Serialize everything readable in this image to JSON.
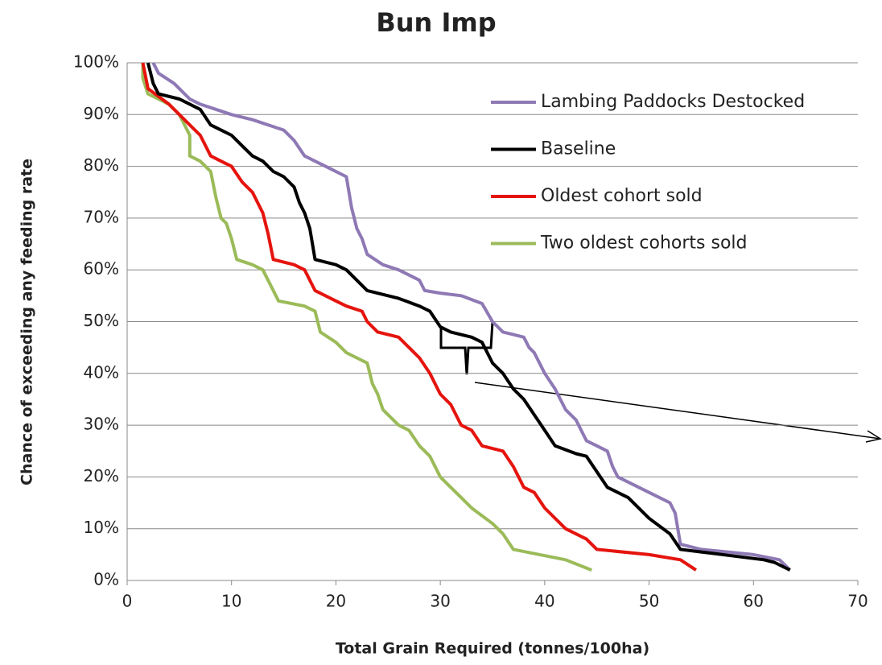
{
  "chart_data": {
    "type": "line",
    "title": "Bun Imp",
    "x_label": "Total Grain Required (tonnes/100ha)",
    "y_label": "Chance of exceeding any feeding rate",
    "xlim": [
      0,
      70
    ],
    "xticks": [
      0,
      10,
      20,
      30,
      40,
      50,
      60,
      70
    ],
    "ylim": [
      0,
      100
    ],
    "yticks": [
      {
        "value": 0,
        "label": "0%"
      },
      {
        "value": 10,
        "label": "10%"
      },
      {
        "value": 20,
        "label": "20%"
      },
      {
        "value": 30,
        "label": "30%"
      },
      {
        "value": 40,
        "label": "40%"
      },
      {
        "value": 50,
        "label": "50%"
      },
      {
        "value": 60,
        "label": "60%"
      },
      {
        "value": 70,
        "label": "70%"
      },
      {
        "value": 80,
        "label": "80%"
      },
      {
        "value": 90,
        "label": "90%"
      },
      {
        "value": 100,
        "label": "100%"
      }
    ],
    "grid": true,
    "legend": "top-right",
    "series": [
      {
        "name": "Lambing Paddocks Destocked",
        "color": "#8e79b5",
        "x": [
          2.5,
          3,
          4.5,
          6,
          7,
          10,
          12,
          15,
          16,
          17,
          18,
          19,
          21,
          21.5,
          22,
          22.5,
          23,
          24.5,
          26,
          27,
          28,
          28.5,
          30,
          32,
          34,
          35,
          36,
          38,
          38.5,
          39,
          40,
          41,
          42,
          43,
          44,
          45,
          46,
          46.5,
          47,
          48,
          50,
          52,
          52.5,
          53,
          55,
          60,
          62.5,
          63.5
        ],
        "values": [
          100,
          98,
          96,
          93,
          92,
          90,
          89,
          87,
          85,
          82,
          81,
          80,
          78,
          72,
          68,
          66,
          63,
          61,
          60,
          59,
          58,
          56,
          55.5,
          55,
          53.5,
          50,
          48,
          47,
          45,
          44,
          40,
          37,
          33,
          31,
          27,
          26,
          25,
          22,
          20,
          19,
          17,
          15,
          13,
          7,
          6,
          5,
          4,
          2
        ]
      },
      {
        "name": "Baseline",
        "color": "#000000",
        "x": [
          2,
          2.5,
          3,
          5,
          6,
          7,
          8,
          9,
          10,
          11,
          12,
          13,
          14,
          15,
          16,
          16.5,
          17,
          17.5,
          18,
          20,
          21,
          22,
          23,
          26,
          28,
          29,
          30,
          31,
          33,
          34,
          35,
          36,
          37,
          38,
          39,
          40,
          41,
          43,
          44,
          45,
          46,
          48,
          50,
          52,
          53,
          55,
          61,
          62,
          63.5
        ],
        "values": [
          100,
          96,
          94,
          93,
          92,
          91,
          88,
          87,
          86,
          84,
          82,
          81,
          79,
          78,
          76,
          73,
          71,
          68,
          62,
          61,
          60,
          58,
          56,
          54.5,
          53,
          52,
          49,
          48,
          47,
          46,
          42,
          40,
          37,
          35,
          32,
          29,
          26,
          24.5,
          24,
          21,
          18,
          16,
          12,
          9,
          6,
          5.5,
          4,
          3.5,
          2
        ]
      },
      {
        "name": "Oldest cohort sold",
        "color": "#e5140e",
        "x": [
          1.5,
          2,
          4,
          5,
          6,
          7,
          8,
          9,
          10,
          11,
          12,
          13,
          13.5,
          14,
          16,
          17,
          18,
          20,
          21,
          22.5,
          23,
          24,
          25,
          26,
          27,
          28,
          29,
          30,
          31,
          32,
          33,
          34,
          36,
          37,
          38,
          39,
          40,
          41,
          42,
          44,
          45,
          50,
          53,
          54.5
        ],
        "values": [
          100,
          95,
          92,
          90,
          88,
          86,
          82,
          81,
          80,
          77,
          75,
          71,
          67,
          62,
          61,
          60,
          56,
          54,
          53,
          52,
          50,
          48,
          47.5,
          47,
          45,
          43,
          40,
          36,
          34,
          30,
          29,
          26,
          25,
          22,
          18,
          17,
          14,
          12,
          10,
          8,
          6,
          5,
          4,
          2
        ]
      },
      {
        "name": "Two oldest cohorts sold",
        "color": "#9bbb59",
        "x": [
          1.5,
          1.5,
          2,
          3,
          4,
          5,
          6,
          6,
          7,
          8,
          8.5,
          9,
          9.5,
          10,
          10.5,
          12,
          13,
          14,
          14.5,
          17,
          18,
          18.5,
          20,
          21,
          22,
          23,
          23.5,
          24,
          24.5,
          25.5,
          26,
          27,
          28,
          29,
          30,
          31,
          32,
          33,
          35,
          36,
          37,
          42,
          44.5
        ],
        "values": [
          100,
          97,
          94,
          93,
          92,
          90,
          86,
          82,
          81,
          79,
          74,
          70,
          69,
          66,
          62,
          61,
          60,
          56,
          54,
          53,
          52,
          48,
          46,
          44,
          43,
          42,
          38,
          36,
          33,
          31,
          30,
          29,
          26,
          24,
          20,
          18,
          16,
          14,
          11,
          9,
          6,
          4,
          2
        ]
      }
    ]
  }
}
